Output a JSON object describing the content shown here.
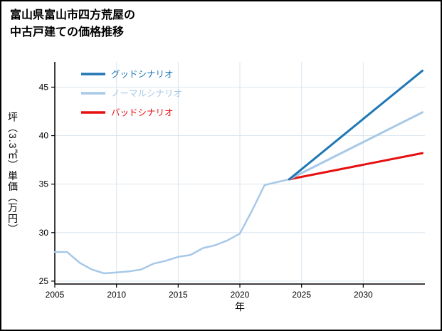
{
  "header": {
    "line1": "富山県富山市四方荒屋の",
    "line2": "中古戸建ての価格推移"
  },
  "chart_data": {
    "type": "line",
    "title": "富山県富山市四方荒屋の中古戸建ての価格推移",
    "xlabel": "年",
    "ylabel": "坪（3.3㎡）単価（万円）",
    "xlim": [
      2005,
      2035
    ],
    "ylim": [
      24.7,
      47.6
    ],
    "x_ticks": [
      2005,
      2010,
      2015,
      2020,
      2025,
      2030
    ],
    "y_ticks": [
      25,
      30,
      35,
      40,
      45
    ],
    "grid": true,
    "legend_position": "top-left",
    "colors": {
      "good": "#1f77b4",
      "normal": "#a8c8e8",
      "bad": "#e61010",
      "grid": "#dbe6ef",
      "axis": "#000000"
    },
    "legend": [
      {
        "label": "グッドシナリオ",
        "series": "good"
      },
      {
        "label": "ノーマルシナリオ",
        "series": "normal"
      },
      {
        "label": "バッドシナリオ",
        "series": "bad"
      }
    ],
    "series": [
      {
        "key": "historical",
        "color_key": "normal",
        "width": 2.5,
        "x": [
          2005,
          2006,
          2007,
          2008,
          2009,
          2010,
          2011,
          2012,
          2013,
          2014,
          2015,
          2016,
          2017,
          2018,
          2019,
          2020,
          2021,
          2022,
          2023,
          2024
        ],
        "y": [
          28.0,
          28.0,
          26.9,
          26.2,
          25.8,
          25.9,
          26.0,
          26.2,
          26.8,
          27.1,
          27.5,
          27.7,
          28.4,
          28.7,
          29.2,
          29.9,
          32.3,
          34.9,
          35.2,
          35.5
        ]
      },
      {
        "key": "bad",
        "color_key": "bad",
        "width": 3,
        "x": [
          2024,
          2034.8
        ],
        "y": [
          35.5,
          38.2
        ]
      },
      {
        "key": "normal",
        "color_key": "normal",
        "width": 3,
        "x": [
          2024,
          2034.8
        ],
        "y": [
          35.5,
          42.4
        ]
      },
      {
        "key": "good",
        "color_key": "good",
        "width": 3,
        "x": [
          2024,
          2034.8
        ],
        "y": [
          35.5,
          46.7
        ]
      }
    ]
  }
}
